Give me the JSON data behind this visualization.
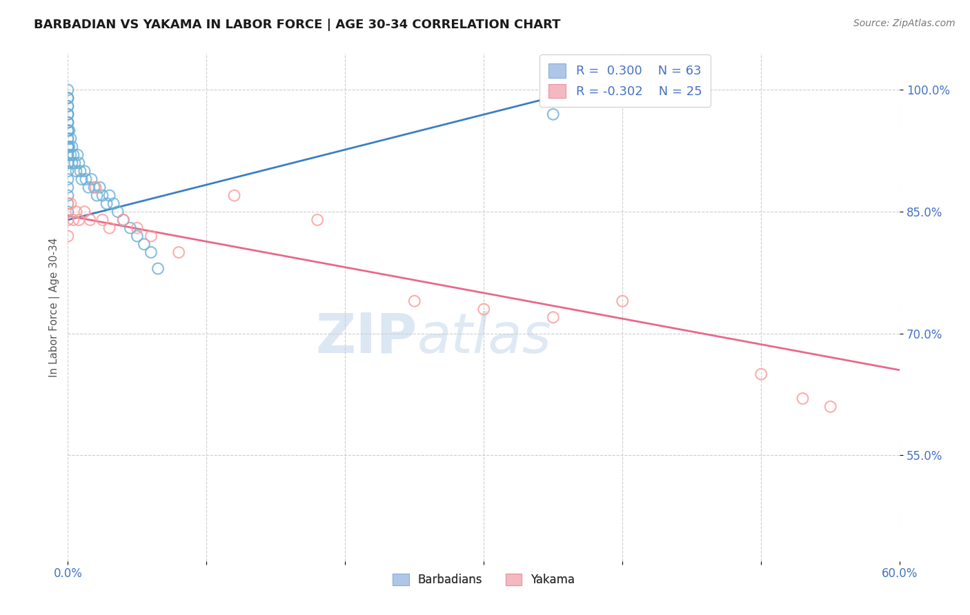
{
  "title": "BARBADIAN VS YAKAMA IN LABOR FORCE | AGE 30-34 CORRELATION CHART",
  "source_text": "Source: ZipAtlas.com",
  "ylabel": "In Labor Force | Age 30-34",
  "xmin": 0.0,
  "xmax": 0.6,
  "ymin": 0.42,
  "ymax": 1.045,
  "yticks": [
    0.55,
    0.7,
    0.85,
    1.0
  ],
  "ytick_labels": [
    "55.0%",
    "70.0%",
    "85.0%",
    "100.0%"
  ],
  "xticks": [
    0.0,
    0.1,
    0.2,
    0.3,
    0.4,
    0.5,
    0.6
  ],
  "xtick_labels": [
    "0.0%",
    "",
    "",
    "",
    "",
    "",
    "60.0%"
  ],
  "legend_r_barbadian": "0.300",
  "legend_n_barbadian": "63",
  "legend_r_yakama": "-0.302",
  "legend_n_yakama": "25",
  "barbadian_color": "#6baed6",
  "yakama_color": "#fb9a99",
  "barbadian_line_color": "#3a7fc1",
  "yakama_line_color": "#e8688a",
  "watermark_zip": "ZIP",
  "watermark_atlas": "atlas",
  "barbadian_x": [
    0.0,
    0.0,
    0.0,
    0.0,
    0.0,
    0.0,
    0.0,
    0.0,
    0.0,
    0.0,
    0.0,
    0.0,
    0.0,
    0.0,
    0.0,
    0.0,
    0.0,
    0.0,
    0.0,
    0.0,
    0.0,
    0.0,
    0.0,
    0.0,
    0.0,
    0.0,
    0.0,
    0.0,
    0.0,
    0.0,
    0.001,
    0.001,
    0.002,
    0.002,
    0.003,
    0.003,
    0.004,
    0.005,
    0.006,
    0.007,
    0.008,
    0.009,
    0.01,
    0.012,
    0.013,
    0.015,
    0.017,
    0.019,
    0.021,
    0.023,
    0.025,
    0.028,
    0.03,
    0.033,
    0.036,
    0.04,
    0.045,
    0.05,
    0.055,
    0.06,
    0.065,
    0.35,
    0.37
  ],
  "barbadian_y": [
    0.97,
    0.98,
    0.98,
    0.99,
    0.99,
    0.99,
    1.0,
    0.97,
    0.96,
    0.95,
    0.94,
    0.93,
    0.92,
    0.91,
    0.9,
    0.89,
    0.88,
    0.87,
    0.86,
    0.85,
    0.96,
    0.97,
    0.95,
    0.94,
    0.93,
    0.92,
    0.91,
    0.93,
    0.95,
    0.96,
    0.95,
    0.93,
    0.94,
    0.92,
    0.93,
    0.91,
    0.92,
    0.91,
    0.9,
    0.92,
    0.91,
    0.9,
    0.89,
    0.9,
    0.89,
    0.88,
    0.89,
    0.88,
    0.87,
    0.88,
    0.87,
    0.86,
    0.87,
    0.86,
    0.85,
    0.84,
    0.83,
    0.82,
    0.81,
    0.8,
    0.78,
    0.97,
    0.99
  ],
  "yakama_x": [
    0.0,
    0.0,
    0.0,
    0.002,
    0.004,
    0.006,
    0.008,
    0.012,
    0.016,
    0.02,
    0.025,
    0.03,
    0.04,
    0.05,
    0.06,
    0.08,
    0.12,
    0.18,
    0.25,
    0.3,
    0.35,
    0.4,
    0.5,
    0.53,
    0.55
  ],
  "yakama_y": [
    0.86,
    0.84,
    0.82,
    0.86,
    0.84,
    0.85,
    0.84,
    0.85,
    0.84,
    0.88,
    0.84,
    0.83,
    0.84,
    0.83,
    0.82,
    0.8,
    0.87,
    0.84,
    0.74,
    0.73,
    0.72,
    0.74,
    0.65,
    0.62,
    0.61
  ],
  "blue_line_x0": 0.0,
  "blue_line_x1": 0.37,
  "blue_line_y0": 0.84,
  "blue_line_y1": 1.0,
  "pink_line_x0": 0.0,
  "pink_line_x1": 0.6,
  "pink_line_y0": 0.845,
  "pink_line_y1": 0.655
}
